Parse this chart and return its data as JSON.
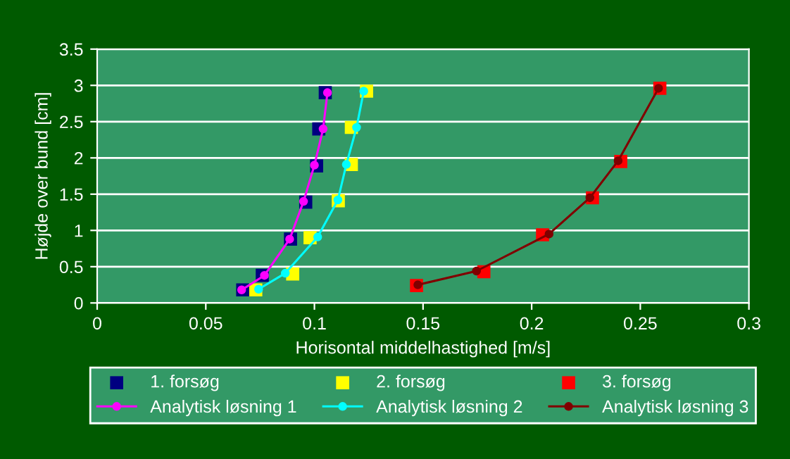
{
  "chart_data": {
    "type": "scatter",
    "xlabel": "Horisontal middelhastighed [m/s]",
    "ylabel": "Højde over bund [cm]",
    "xlim": [
      0,
      0.3
    ],
    "xticks": [
      0,
      0.05,
      0.1,
      0.15,
      0.2,
      0.25,
      0.3
    ],
    "ylim": [
      0,
      3.5
    ],
    "yticks": [
      0,
      0.5,
      1,
      1.5,
      2,
      2.5,
      3,
      3.5
    ],
    "grid": "y",
    "legend": "bottom",
    "marker": "square",
    "series": [
      {
        "name": "1. forsøg",
        "color": "#000080",
        "x": [
          0.067,
          0.076,
          0.089,
          0.096,
          0.101,
          0.102,
          0.105
        ],
        "values": [
          0.18,
          0.38,
          0.88,
          1.39,
          1.89,
          2.4,
          2.9
        ]
      },
      {
        "name": "2. forsøg",
        "color": "#ffff00",
        "x": [
          0.073,
          0.09,
          0.098,
          0.111,
          0.117,
          0.117,
          0.124
        ],
        "values": [
          0.18,
          0.4,
          0.9,
          1.41,
          1.91,
          2.42,
          2.92
        ]
      },
      {
        "name": "3. forsøg",
        "color": "#ff0000",
        "x": [
          0.147,
          0.178,
          0.205,
          0.228,
          0.241,
          0.259
        ],
        "values": [
          0.24,
          0.43,
          0.94,
          1.45,
          1.95,
          2.96
        ]
      },
      {
        "name": "Analytisk løsning 1",
        "type": "line",
        "marker": "circle",
        "color": "#ff00ff",
        "x": [
          0.0665,
          0.077,
          0.0886,
          0.095,
          0.1,
          0.104,
          0.106
        ],
        "values": [
          0.18,
          0.38,
          0.88,
          1.4,
          1.9,
          2.4,
          2.9
        ]
      },
      {
        "name": "Analytisk løsning 2",
        "type": "line",
        "marker": "circle",
        "color": "#00ffff",
        "x": [
          0.0743,
          0.0866,
          0.1015,
          0.1108,
          0.1147,
          0.1194,
          0.1227
        ],
        "values": [
          0.19,
          0.41,
          0.91,
          1.42,
          1.91,
          2.42,
          2.92
        ]
      },
      {
        "name": "Analytisk løsning 3",
        "type": "line",
        "marker": "circle",
        "color": "#800000",
        "x": [
          0.1476,
          0.1746,
          0.208,
          0.2268,
          0.2398,
          0.2584
        ],
        "values": [
          0.25,
          0.44,
          0.95,
          1.45,
          1.96,
          2.96
        ]
      }
    ]
  }
}
